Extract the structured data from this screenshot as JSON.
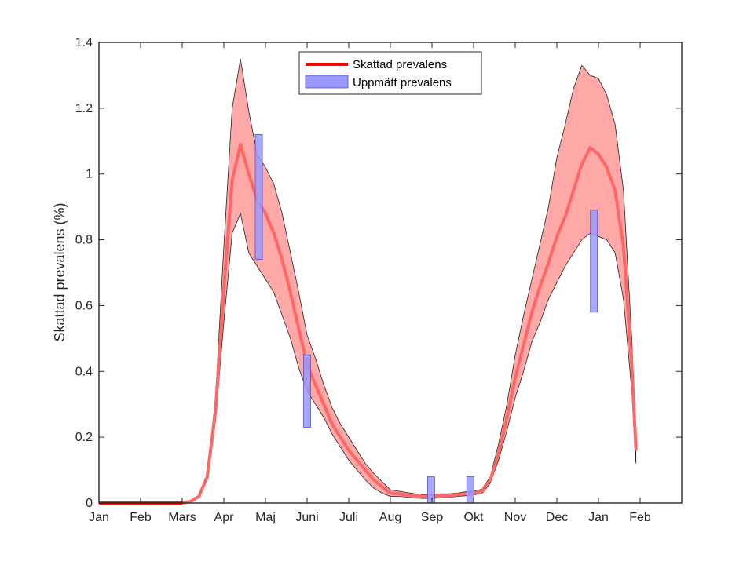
{
  "chart_data": {
    "type": "line",
    "title": "",
    "xlabel": "",
    "ylabel": "Skattad prevalens (%)",
    "ylim": [
      0,
      1.4
    ],
    "yticks": [
      "0",
      "0.2",
      "0.4",
      "0.6",
      "0.8",
      "1",
      "1.2",
      "1.4"
    ],
    "xticks": [
      "Jan",
      "Feb",
      "Mars",
      "Apr",
      "Maj",
      "Juni",
      "Juli",
      "Aug",
      "Sep",
      "Okt",
      "Nov",
      "Dec",
      "Jan",
      "Feb"
    ],
    "xlim_month": [
      0,
      14
    ],
    "legend_position": "top-center",
    "series": [
      {
        "name": "Skattad prevalens",
        "color": "#ff6666",
        "band_color": "#ffa8a8",
        "x_month": [
          0,
          2,
          2.2,
          2.4,
          2.6,
          2.8,
          3.0,
          3.2,
          3.4,
          3.6,
          3.8,
          4.0,
          4.2,
          4.4,
          4.6,
          4.8,
          5.0,
          5.2,
          5.4,
          5.6,
          5.8,
          6.0,
          6.2,
          6.4,
          6.6,
          6.8,
          7.0,
          7.2,
          7.4,
          7.6,
          7.8,
          8.0,
          8.2,
          8.4,
          8.6,
          8.8,
          9.0,
          9.2,
          9.4,
          9.6,
          9.8,
          10.0,
          10.2,
          10.4,
          10.6,
          10.8,
          11.0,
          11.2,
          11.4,
          11.6,
          11.8,
          12.0,
          12.2,
          12.4,
          12.6,
          12.8,
          12.9
        ],
        "y": [
          0,
          0,
          0.005,
          0.02,
          0.08,
          0.28,
          0.65,
          0.98,
          1.09,
          1.0,
          0.92,
          0.88,
          0.82,
          0.74,
          0.64,
          0.53,
          0.42,
          0.36,
          0.3,
          0.24,
          0.2,
          0.16,
          0.13,
          0.1,
          0.07,
          0.05,
          0.03,
          0.028,
          0.025,
          0.022,
          0.02,
          0.02,
          0.022,
          0.022,
          0.025,
          0.028,
          0.03,
          0.035,
          0.07,
          0.15,
          0.26,
          0.38,
          0.48,
          0.58,
          0.66,
          0.73,
          0.81,
          0.87,
          0.95,
          1.03,
          1.08,
          1.06,
          1.02,
          0.95,
          0.78,
          0.42,
          0.16
        ],
        "lower": [
          0,
          0,
          0.004,
          0.018,
          0.07,
          0.25,
          0.55,
          0.82,
          0.88,
          0.76,
          0.72,
          0.68,
          0.64,
          0.57,
          0.5,
          0.41,
          0.34,
          0.3,
          0.26,
          0.21,
          0.17,
          0.13,
          0.1,
          0.07,
          0.045,
          0.03,
          0.02,
          0.02,
          0.018,
          0.015,
          0.014,
          0.014,
          0.016,
          0.017,
          0.02,
          0.022,
          0.025,
          0.028,
          0.06,
          0.13,
          0.22,
          0.32,
          0.4,
          0.49,
          0.55,
          0.62,
          0.67,
          0.72,
          0.76,
          0.8,
          0.82,
          0.81,
          0.8,
          0.76,
          0.62,
          0.34,
          0.12
        ],
        "upper": [
          0,
          0,
          0.006,
          0.023,
          0.09,
          0.32,
          0.78,
          1.2,
          1.35,
          1.19,
          1.06,
          1.02,
          0.97,
          0.88,
          0.76,
          0.64,
          0.51,
          0.44,
          0.36,
          0.29,
          0.24,
          0.2,
          0.16,
          0.12,
          0.09,
          0.065,
          0.04,
          0.036,
          0.032,
          0.028,
          0.026,
          0.026,
          0.028,
          0.028,
          0.03,
          0.034,
          0.036,
          0.042,
          0.08,
          0.18,
          0.3,
          0.45,
          0.57,
          0.68,
          0.79,
          0.9,
          1.05,
          1.15,
          1.26,
          1.33,
          1.3,
          1.29,
          1.24,
          1.15,
          0.95,
          0.5,
          0.19
        ]
      },
      {
        "name": "Uppmätt prevalens",
        "type": "range-bar",
        "color": "#9999ff",
        "x_month": [
          3.84,
          5.0,
          7.98,
          8.92,
          11.89
        ],
        "low": [
          0.74,
          0.23,
          0.0,
          0.0,
          0.58
        ],
        "high": [
          1.12,
          0.45,
          0.08,
          0.08,
          0.89
        ]
      }
    ]
  }
}
